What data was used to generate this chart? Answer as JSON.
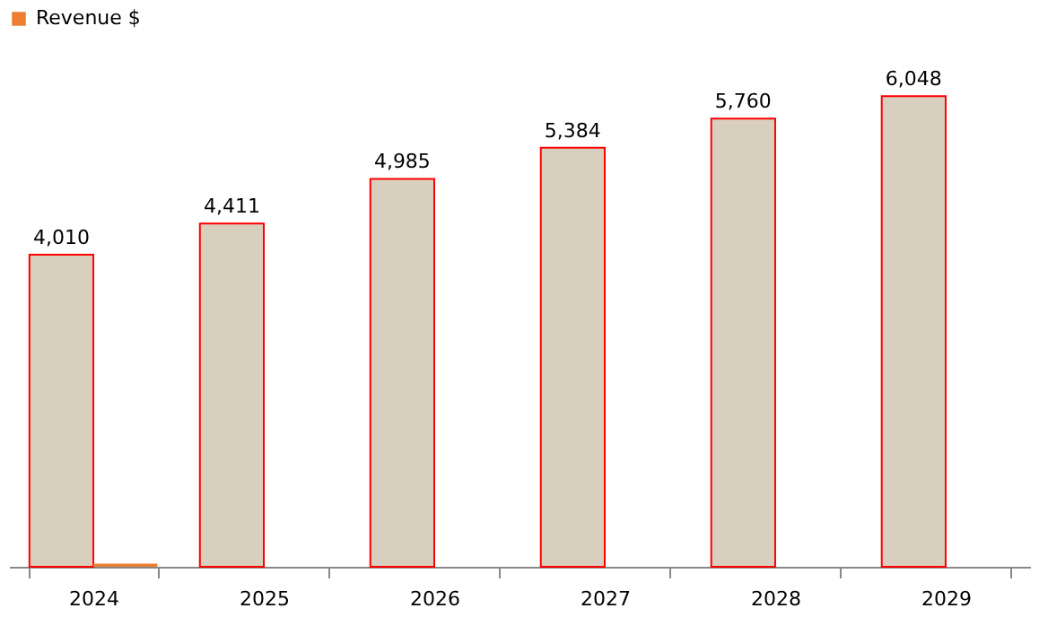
{
  "chart_data": {
    "type": "bar",
    "categories": [
      "2024",
      "2025",
      "2026",
      "2027",
      "2028",
      "2029"
    ],
    "series": [
      {
        "color": "#d8cfbe",
        "values": [
          4010,
          4411,
          4985,
          5384,
          5760,
          6048
        ],
        "value_labels": [
          "4,010",
          "4,411",
          "4,985",
          "5,384",
          "5,760",
          "6,048"
        ]
      },
      {
        "name": "Revenue $",
        "color": "#ed7d31",
        "values": [
          40,
          null,
          null,
          null,
          null,
          null
        ]
      }
    ],
    "legend": "top",
    "grid": false,
    "tick_labels": "x"
  }
}
